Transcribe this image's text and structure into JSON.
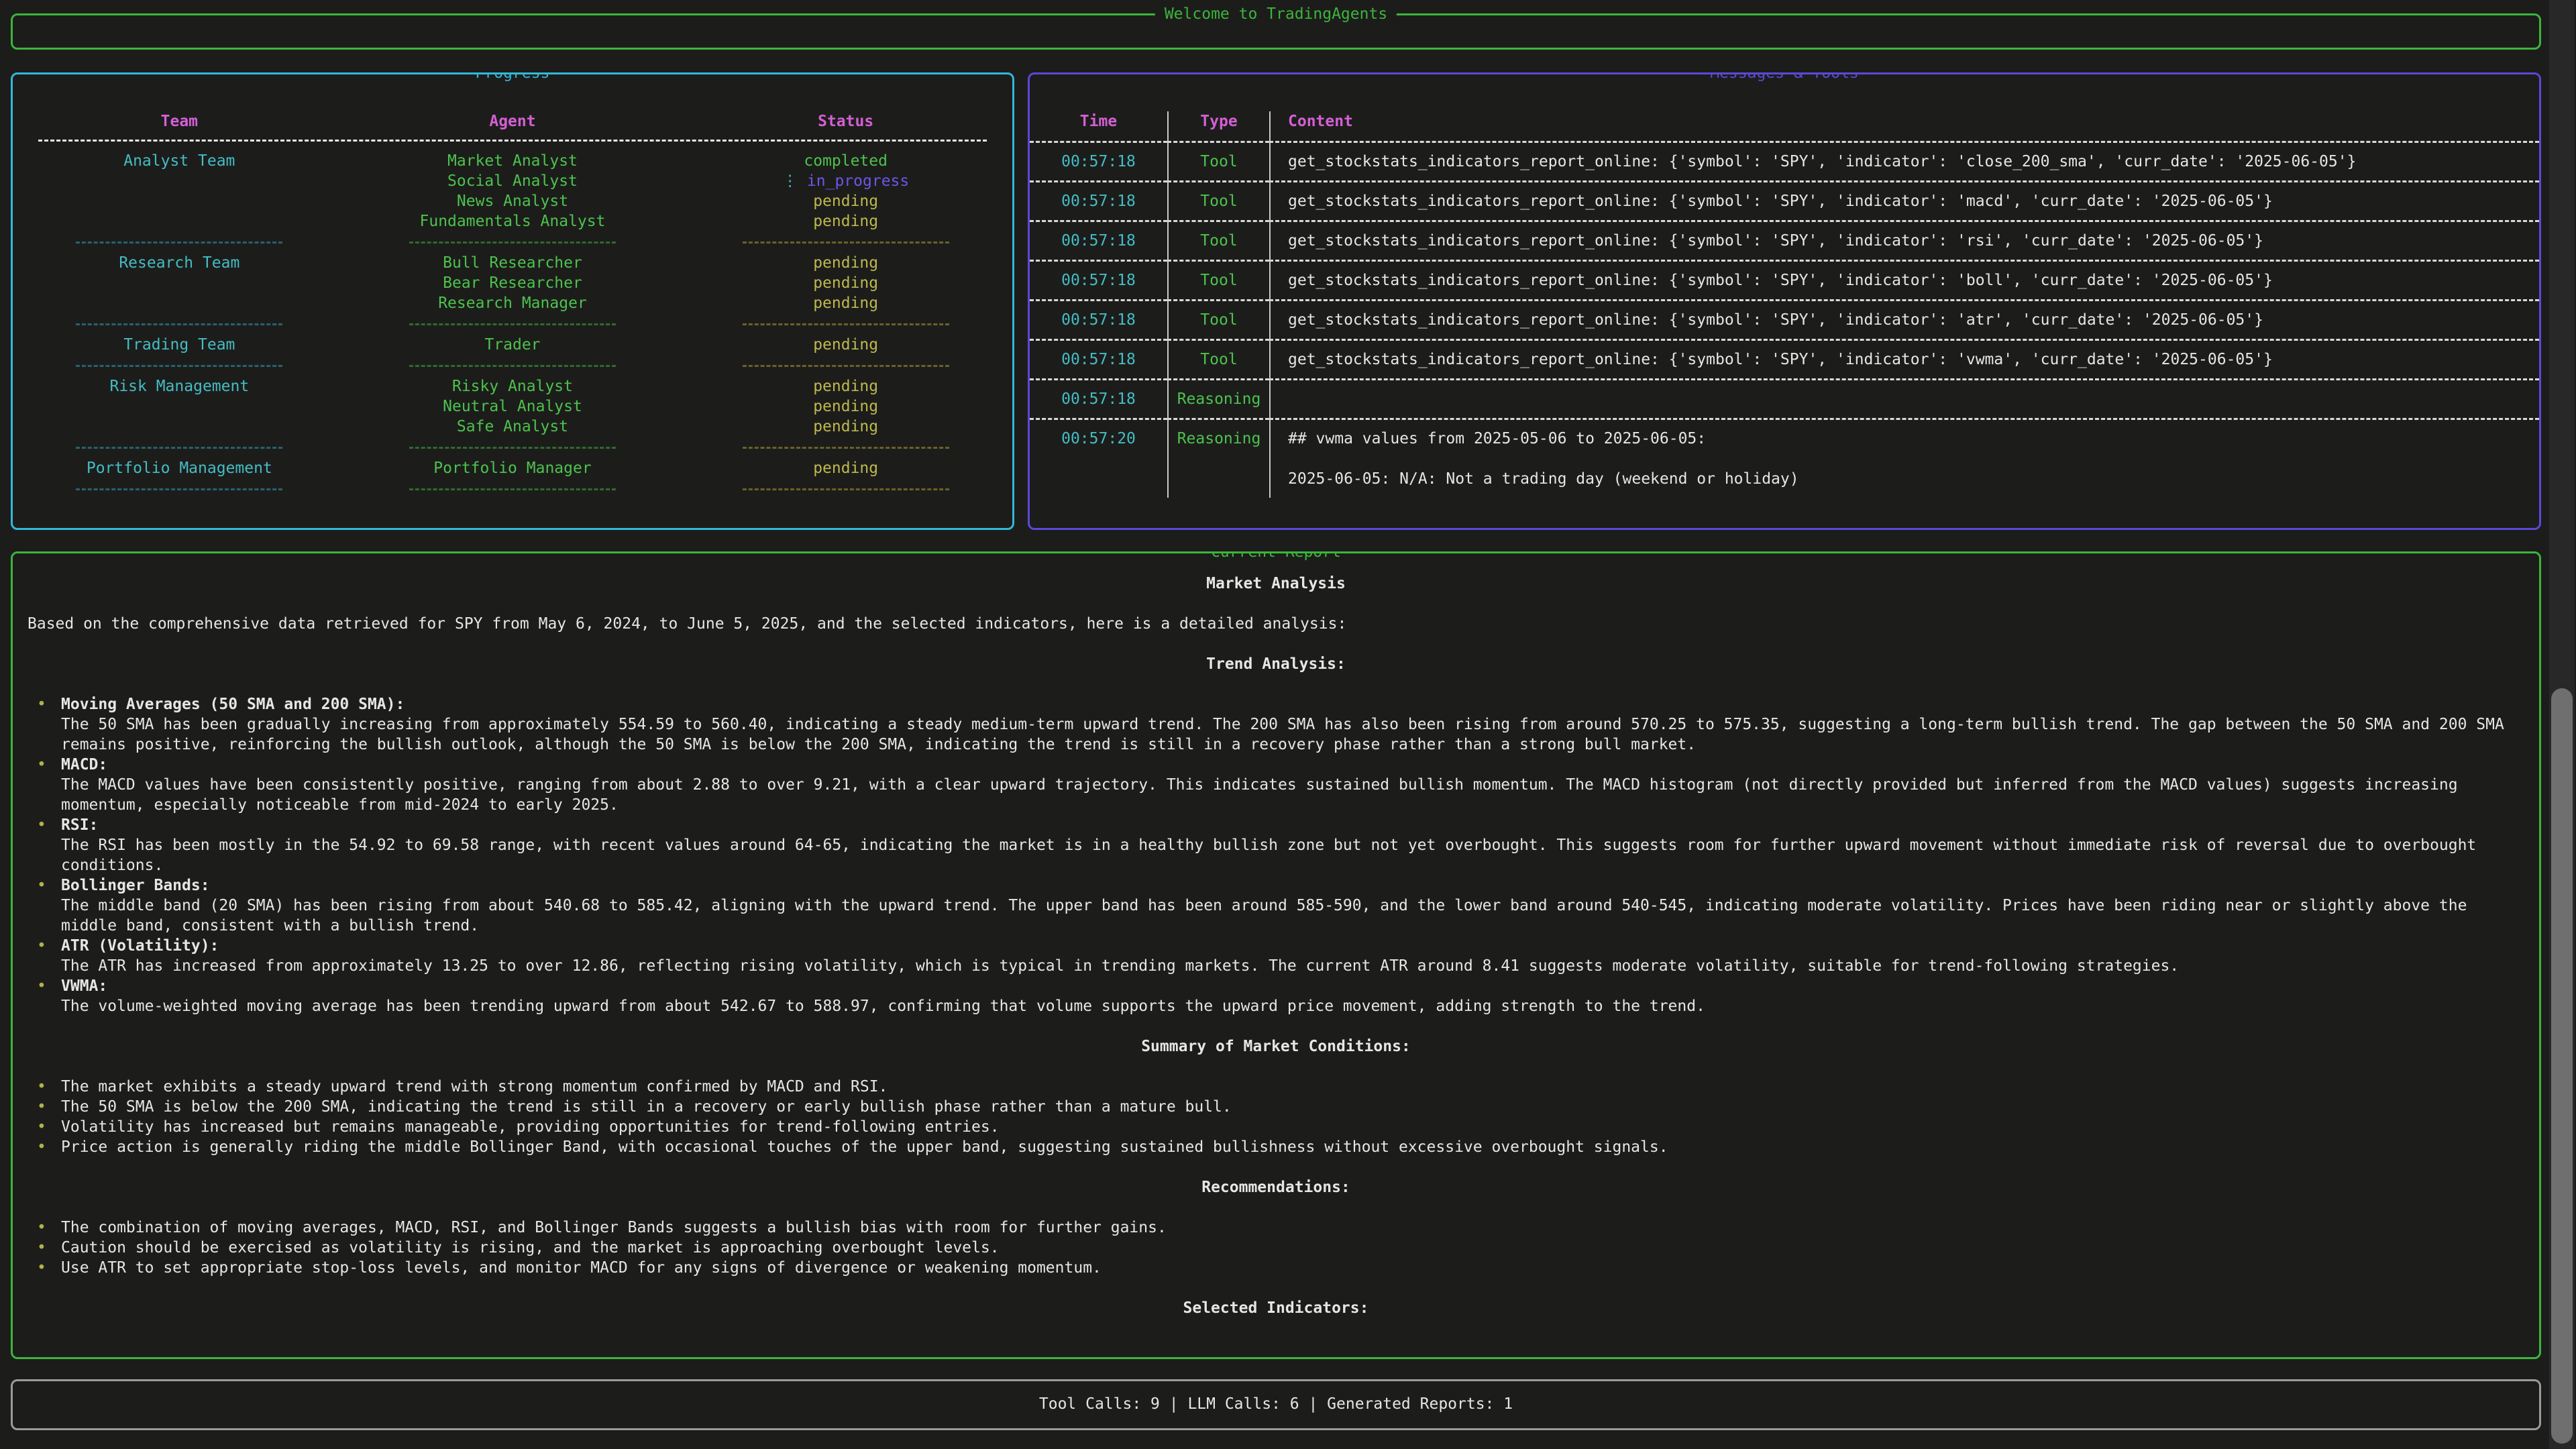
{
  "app": {
    "title": "Welcome to TradingAgents"
  },
  "progress": {
    "title": "Progress",
    "columns": [
      "Team",
      "Agent",
      "Status"
    ],
    "spinner_glyph": "⋮",
    "groups": [
      {
        "team": "Analyst Team",
        "agents": [
          {
            "name": "Market Analyst",
            "status": "completed"
          },
          {
            "name": "Social Analyst",
            "status": "in_progress"
          },
          {
            "name": "News Analyst",
            "status": "pending"
          },
          {
            "name": "Fundamentals Analyst",
            "status": "pending"
          }
        ]
      },
      {
        "team": "Research Team",
        "agents": [
          {
            "name": "Bull Researcher",
            "status": "pending"
          },
          {
            "name": "Bear Researcher",
            "status": "pending"
          },
          {
            "name": "Research Manager",
            "status": "pending"
          }
        ]
      },
      {
        "team": "Trading Team",
        "agents": [
          {
            "name": "Trader",
            "status": "pending"
          }
        ]
      },
      {
        "team": "Risk Management",
        "agents": [
          {
            "name": "Risky Analyst",
            "status": "pending"
          },
          {
            "name": "Neutral Analyst",
            "status": "pending"
          },
          {
            "name": "Safe Analyst",
            "status": "pending"
          }
        ]
      },
      {
        "team": "Portfolio Management",
        "agents": [
          {
            "name": "Portfolio Manager",
            "status": "pending"
          }
        ]
      }
    ]
  },
  "messages": {
    "title": "Messages & Tools",
    "columns": [
      "Time",
      "Type",
      "Content"
    ],
    "rows": [
      {
        "time": "00:57:18",
        "type": "Tool",
        "content": "get_stockstats_indicators_report_online: {'symbol': 'SPY', 'indicator': 'close_200_sma', 'curr_date': '2025-06-05'}"
      },
      {
        "time": "00:57:18",
        "type": "Tool",
        "content": "get_stockstats_indicators_report_online: {'symbol': 'SPY', 'indicator': 'macd', 'curr_date': '2025-06-05'}"
      },
      {
        "time": "00:57:18",
        "type": "Tool",
        "content": "get_stockstats_indicators_report_online: {'symbol': 'SPY', 'indicator': 'rsi', 'curr_date': '2025-06-05'}"
      },
      {
        "time": "00:57:18",
        "type": "Tool",
        "content": "get_stockstats_indicators_report_online: {'symbol': 'SPY', 'indicator': 'boll', 'curr_date': '2025-06-05'}"
      },
      {
        "time": "00:57:18",
        "type": "Tool",
        "content": "get_stockstats_indicators_report_online: {'symbol': 'SPY', 'indicator': 'atr', 'curr_date': '2025-06-05'}"
      },
      {
        "time": "00:57:18",
        "type": "Tool",
        "content": "get_stockstats_indicators_report_online: {'symbol': 'SPY', 'indicator': 'vwma', 'curr_date': '2025-06-05'}"
      },
      {
        "time": "00:57:18",
        "type": "Reasoning",
        "content": ""
      },
      {
        "time": "00:57:20",
        "type": "Reasoning",
        "content": "## vwma values from 2025-05-06 to 2025-06-05:\n\n2025-06-05: N/A: Not a trading day (weekend or holiday)"
      }
    ]
  },
  "report": {
    "title": "Current Report",
    "heading": "Market Analysis",
    "intro": "Based on the comprehensive data retrieved for SPY from May 6, 2024, to June 5, 2025, and the selected indicators, here is a detailed analysis:",
    "bullet_glyph": "•",
    "sections": [
      {
        "heading": "Trend Analysis:",
        "bullets": [
          {
            "label": "Moving Averages (50 SMA and 200 SMA):",
            "text": "The 50 SMA has been gradually increasing from approximately 554.59 to 560.40, indicating a steady medium-term upward trend. The 200 SMA has also been rising from around 570.25 to 575.35, suggesting a long-term bullish trend. The gap between the 50 SMA and 200 SMA remains positive, reinforcing the bullish outlook, although the 50 SMA is below the 200 SMA, indicating the trend is still in a recovery phase rather than a strong bull market."
          },
          {
            "label": "MACD:",
            "text": "The MACD values have been consistently positive, ranging from about 2.88 to over 9.21, with a clear upward trajectory. This indicates sustained bullish momentum. The MACD histogram (not directly provided but inferred from the MACD values) suggests increasing momentum, especially noticeable from mid-2024 to early 2025."
          },
          {
            "label": "RSI:",
            "text": "The RSI has been mostly in the 54.92 to 69.58 range, with recent values around 64-65, indicating the market is in a healthy bullish zone but not yet overbought. This suggests room for further upward movement without immediate risk of reversal due to overbought conditions."
          },
          {
            "label": "Bollinger Bands:",
            "text": "The middle band (20 SMA) has been rising from about 540.68 to 585.42, aligning with the upward trend. The upper band has been around 585-590, and the lower band around 540-545, indicating moderate volatility. Prices have been riding near or slightly above the middle band, consistent with a bullish trend."
          },
          {
            "label": "ATR (Volatility):",
            "text": "The ATR has increased from approximately 13.25 to over 12.86, reflecting rising volatility, which is typical in trending markets. The current ATR around 8.41 suggests moderate volatility, suitable for trend-following strategies."
          },
          {
            "label": "VWMA:",
            "text": "The volume-weighted moving average has been trending upward from about 542.67 to 588.97, confirming that volume supports the upward price movement, adding strength to the trend."
          }
        ]
      },
      {
        "heading": "Summary of Market Conditions:",
        "bullets": [
          {
            "text": "The market exhibits a steady upward trend with strong momentum confirmed by MACD and RSI."
          },
          {
            "text": "The 50 SMA is below the 200 SMA, indicating the trend is still in a recovery or early bullish phase rather than a mature bull."
          },
          {
            "text": "Volatility has increased but remains manageable, providing opportunities for trend-following entries."
          },
          {
            "text": "Price action is generally riding the middle Bollinger Band, with occasional touches of the upper band, suggesting sustained bullishness without excessive overbought signals."
          }
        ]
      },
      {
        "heading": "Recommendations:",
        "bullets": [
          {
            "text": "The combination of moving averages, MACD, RSI, and Bollinger Bands suggests a bullish bias with room for further gains."
          },
          {
            "text": "Caution should be exercised as volatility is rising, and the market is approaching overbought levels."
          },
          {
            "text": "Use ATR to set appropriate stop-loss levels, and monitor MACD for any signs of divergence or weakening momentum."
          }
        ]
      },
      {
        "heading": "Selected Indicators:",
        "bullets": []
      }
    ]
  },
  "footer": {
    "stats": "Tool Calls: 9 | LLM Calls: 6 | Generated Reports: 1"
  },
  "colors": {
    "background": "#1c1d1b",
    "green_accent": "#3cb43c",
    "cyan_accent": "#31b8d8",
    "purple_accent": "#5a49d8",
    "magenta_header": "#d45fd4",
    "pending_yellow": "#bfb84e",
    "in_progress_purple": "#6c56e8",
    "completed_green": "#4dc24d"
  }
}
